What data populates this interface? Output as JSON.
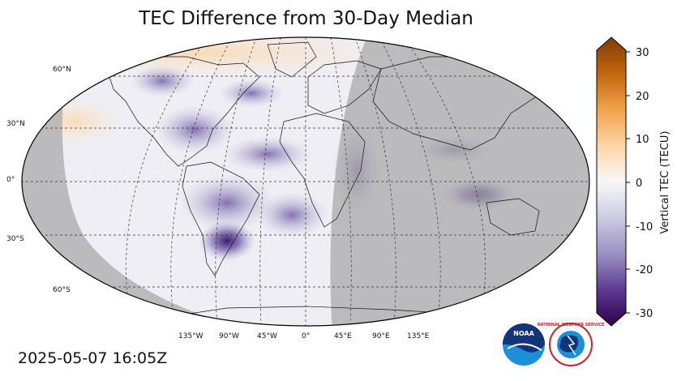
{
  "title": "TEC Difference from 30-Day Median",
  "timestamp": "2025-05-07 16:05Z",
  "map": {
    "projection": "robinson",
    "graticule": "dashed",
    "lat_labels": [
      "60°N",
      "30°N",
      "0°",
      "30°S",
      "60°S"
    ],
    "lon_labels": [
      "135°W",
      "90°W",
      "45°W",
      "0°",
      "45°E",
      "90°E",
      "135°E"
    ],
    "night_shade": "#a8a8a8"
  },
  "colorbar": {
    "label": "Vertical TEC (TECU)",
    "min": -30,
    "max": 30,
    "ticks": [
      "30",
      "20",
      "10",
      "0",
      "-10",
      "-20",
      "-30"
    ],
    "colors_low": "#2d004b",
    "colors_mid": "#f7f7f7",
    "colors_high": "#7f3b08"
  },
  "logos": {
    "noaa": "NOAA",
    "nws": "NATIONAL WEATHER SERVICE"
  }
}
